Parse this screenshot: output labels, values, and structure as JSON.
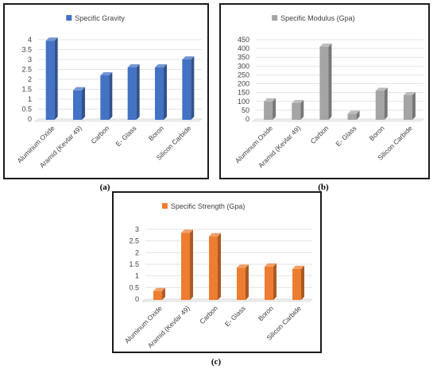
{
  "chart_data": [
    {
      "type": "bar",
      "panel_label": "a",
      "legend": "Specific Gravity",
      "color": "#4472C4",
      "categories": [
        "Aluminum Oxide",
        "Aramid (Kevlar 49)",
        "Carbon",
        "E- Glass",
        "Boron",
        "Silicon Carbide"
      ],
      "values": [
        3.95,
        1.45,
        2.2,
        2.6,
        2.6,
        3.0
      ],
      "yticks": [
        "0",
        "0.5",
        "1",
        "1.5",
        "2",
        "2.5",
        "3",
        "3.5",
        "4"
      ],
      "ylim": [
        0,
        4
      ],
      "grid": true,
      "legend_position": "top"
    },
    {
      "type": "bar",
      "panel_label": "b",
      "legend": "Specific Modulus (Gpa)",
      "color": "#A5A5A5",
      "categories": [
        "Aluminum Oxide",
        "Aramid (Kevlar 49)",
        "Carbon",
        "E- Glass",
        "Boron",
        "Silicon Carbide"
      ],
      "values": [
        100,
        90,
        410,
        30,
        160,
        135
      ],
      "yticks": [
        "0",
        "50",
        "100",
        "150",
        "200",
        "250",
        "300",
        "350",
        "400",
        "450"
      ],
      "ylim": [
        0,
        450
      ],
      "grid": true,
      "legend_position": "top"
    },
    {
      "type": "bar",
      "panel_label": "c",
      "legend": "Specific Strength (Gpa)",
      "color": "#ED7D31",
      "categories": [
        "Aluminum Oxide",
        "Aramid (Kevlar 49)",
        "Carbon",
        "E- Glass",
        "Boron",
        "Silicon Carbide"
      ],
      "values": [
        0.35,
        2.85,
        2.7,
        1.35,
        1.4,
        1.3
      ],
      "yticks": [
        "0",
        "0.5",
        "1",
        "1.5",
        "2",
        "2.5",
        "3"
      ],
      "ylim": [
        0,
        3
      ],
      "grid": true,
      "legend_position": "top"
    }
  ],
  "captions": [
    "(a)",
    "(b)",
    "(c)"
  ]
}
